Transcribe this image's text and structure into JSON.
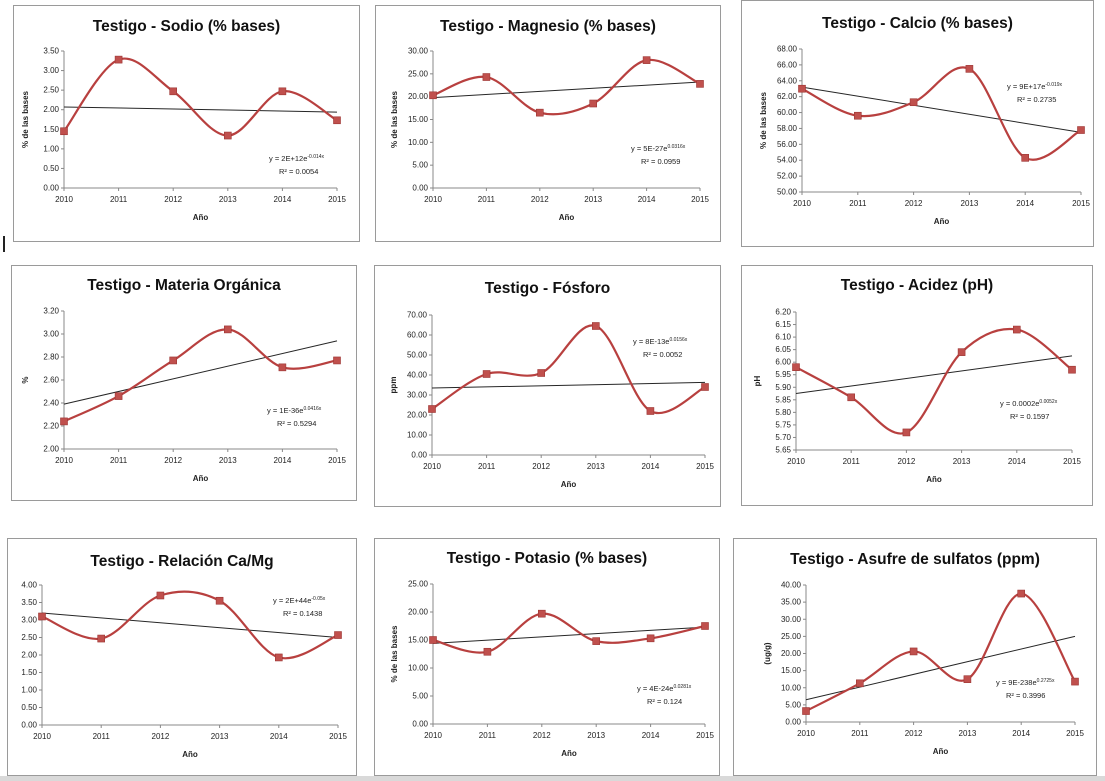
{
  "chart_data": [
    {
      "type": "line",
      "title": "Testigo - Sodio (% bases)",
      "xlabel": "Año",
      "ylabel": "% de las bases",
      "categories": [
        "2010",
        "2011",
        "2012",
        "2013",
        "2014",
        "2015"
      ],
      "values": [
        1.45,
        3.28,
        2.47,
        1.34,
        2.47,
        1.73
      ],
      "ylim": [
        0,
        3.5
      ],
      "yticks": [
        "0.00",
        "0.50",
        "1.00",
        "1.50",
        "2.00",
        "2.50",
        "3.00",
        "3.50"
      ],
      "trend": [
        2.07,
        1.94
      ],
      "eq": "y = 2E+12e",
      "eq_exp": "-0.014x",
      "r2": "R² = 0.0054"
    },
    {
      "type": "line",
      "title": "Testigo - Magnesio (% bases)",
      "xlabel": "Año",
      "ylabel": "% de las bases",
      "categories": [
        "2010",
        "2011",
        "2012",
        "2013",
        "2014",
        "2015"
      ],
      "values": [
        20.3,
        24.3,
        16.5,
        18.5,
        28.0,
        22.8
      ],
      "ylim": [
        0,
        30
      ],
      "yticks": [
        "0.00",
        "5.00",
        "10.00",
        "15.00",
        "20.00",
        "25.00",
        "30.00"
      ],
      "trend": [
        19.8,
        23.2
      ],
      "eq": "y = 5E-27e",
      "eq_exp": "0.0316x",
      "r2": "R² = 0.0959"
    },
    {
      "type": "line",
      "title": "Testigo - Calcio (% bases)",
      "xlabel": "Año",
      "ylabel": "% de las bases",
      "categories": [
        "2010",
        "2011",
        "2012",
        "2013",
        "2014",
        "2015"
      ],
      "values": [
        63.0,
        59.6,
        61.3,
        65.5,
        54.3,
        57.8
      ],
      "ylim": [
        50,
        68
      ],
      "yticks": [
        "50.00",
        "52.00",
        "54.00",
        "56.00",
        "58.00",
        "60.00",
        "62.00",
        "64.00",
        "66.00",
        "68.00"
      ],
      "trend": [
        63.2,
        57.5
      ],
      "eq": "y = 9E+17e",
      "eq_exp": "-0.019x",
      "r2": "R² = 0.2735"
    },
    {
      "type": "line",
      "title": "Testigo - Materia Orgánica",
      "xlabel": "Año",
      "ylabel": "%",
      "categories": [
        "2010",
        "2011",
        "2012",
        "2013",
        "2014",
        "2015"
      ],
      "values": [
        2.24,
        2.46,
        2.77,
        3.04,
        2.71,
        2.77
      ],
      "ylim": [
        2,
        3.2
      ],
      "yticks": [
        "2.00",
        "2.20",
        "2.40",
        "2.60",
        "2.80",
        "3.00",
        "3.20"
      ],
      "trend": [
        2.39,
        2.94
      ],
      "eq": "y = 1E-36e",
      "eq_exp": "0.0416x",
      "r2": "R² = 0.5294"
    },
    {
      "type": "line",
      "title": "Testigo - Fósforo",
      "xlabel": "Año",
      "ylabel": "ppm",
      "categories": [
        "2010",
        "2011",
        "2012",
        "2013",
        "2014",
        "2015"
      ],
      "values": [
        23.0,
        40.5,
        41.0,
        64.5,
        22.0,
        34.0
      ],
      "ylim": [
        0,
        70
      ],
      "yticks": [
        "0.00",
        "10.00",
        "20.00",
        "30.00",
        "40.00",
        "50.00",
        "60.00",
        "70.00"
      ],
      "trend": [
        33.5,
        36.3
      ],
      "eq": "y = 8E-13e",
      "eq_exp": "0.0156x",
      "r2": "R² = 0.0052"
    },
    {
      "type": "line",
      "title": "Testigo - Acidez (pH)",
      "xlabel": "Año",
      "ylabel": "pH",
      "categories": [
        "2010",
        "2011",
        "2012",
        "2013",
        "2014",
        "2015"
      ],
      "values": [
        5.98,
        5.86,
        5.72,
        6.04,
        6.13,
        5.97
      ],
      "ylim": [
        5.65,
        6.2
      ],
      "yticks": [
        "5.65",
        "5.70",
        "5.75",
        "5.80",
        "5.85",
        "5.90",
        "5.95",
        "6.00",
        "6.05",
        "6.10",
        "6.15",
        "6.20"
      ],
      "trend": [
        5.875,
        6.025
      ],
      "eq": "y = 0.0002e",
      "eq_exp": "0.0052x",
      "r2": "R² = 0.1597"
    },
    {
      "type": "line",
      "title": "Testigo - Relación Ca/Mg",
      "xlabel": "Año",
      "ylabel": "",
      "categories": [
        "2010",
        "2011",
        "2012",
        "2013",
        "2014",
        "2015"
      ],
      "values": [
        3.1,
        2.47,
        3.7,
        3.55,
        1.93,
        2.57
      ],
      "ylim": [
        0,
        4
      ],
      "yticks": [
        "0.00",
        "0.50",
        "1.00",
        "1.50",
        "2.00",
        "2.50",
        "3.00",
        "3.50",
        "4.00"
      ],
      "trend": [
        3.2,
        2.5
      ],
      "eq": "y = 2E+44e",
      "eq_exp": "-0.05x",
      "r2": "R² = 0.1438"
    },
    {
      "type": "line",
      "title": "Testigo - Potasio (% bases)",
      "xlabel": "Año",
      "ylabel": "% de las bases",
      "categories": [
        "2010",
        "2011",
        "2012",
        "2013",
        "2014",
        "2015"
      ],
      "values": [
        15.0,
        12.9,
        19.7,
        14.8,
        15.3,
        17.5
      ],
      "ylim": [
        0,
        25
      ],
      "yticks": [
        "0.00",
        "5.00",
        "10.00",
        "15.00",
        "20.00",
        "25.00"
      ],
      "trend": [
        14.4,
        17.3
      ],
      "eq": "y = 4E-24e",
      "eq_exp": "0.0281x",
      "r2": "R² = 0.124"
    },
    {
      "type": "line",
      "title": "Testigo - Asufre de sulfatos (ppm)",
      "xlabel": "Año",
      "ylabel": "(ug/g)",
      "categories": [
        "2010",
        "2011",
        "2012",
        "2013",
        "2014",
        "2015"
      ],
      "values": [
        3.2,
        11.3,
        20.6,
        12.5,
        37.5,
        11.8
      ],
      "ylim": [
        0,
        40
      ],
      "yticks": [
        "0.00",
        "5.00",
        "10.00",
        "15.00",
        "20.00",
        "25.00",
        "30.00",
        "35.00",
        "40.00"
      ],
      "trend": [
        6.5,
        25.0
      ],
      "eq": "y = 9E-238e",
      "eq_exp": "0.2725x",
      "r2": "R² = 0.3996"
    }
  ],
  "colors": {
    "series": "#b8403f",
    "marker": "#c0504d",
    "trend": "#262626",
    "grid": "#bfbfbf"
  }
}
